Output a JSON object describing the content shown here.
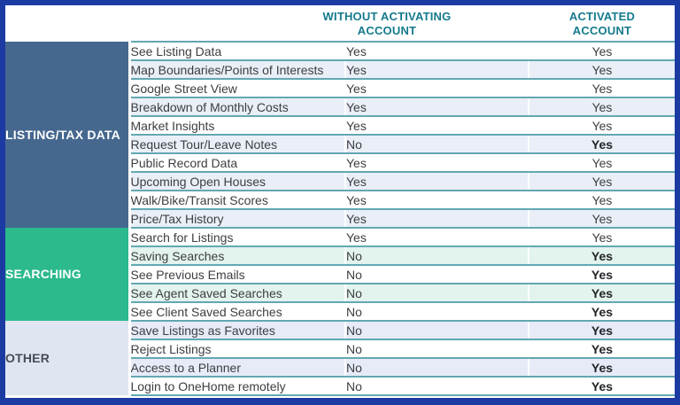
{
  "header": {
    "without_label": "WITHOUT ACTIVATING\nACCOUNT",
    "activated_label": "ACTIVATED\nACCOUNT"
  },
  "colors": {
    "frame_border": "#1c3ba2",
    "header_text": "#157a8d",
    "separator": "#62a8b2",
    "group_listing_bg": "#46688f",
    "group_searching_bg": "#2cb98e",
    "group_other_bg": "#dfe5f1",
    "group_light_text": "#ffffff",
    "group_dark_text": "#474b55",
    "tint_listing": "#e9eef7",
    "tint_searching": "#e3f3ed",
    "tint_other": "#e6ebf7",
    "body_text": "#3d3e42"
  },
  "table": {
    "groups": [
      {
        "id": "listing-tax-data",
        "label": "LISTING/TAX DATA",
        "rows": [
          {
            "feature": "See Listing Data",
            "without": "Yes",
            "activated": "Yes",
            "activated_bold": false
          },
          {
            "feature": "Map Boundaries/Points of Interests",
            "without": "Yes",
            "activated": "Yes",
            "activated_bold": false
          },
          {
            "feature": "Google Street View",
            "without": "Yes",
            "activated": "Yes",
            "activated_bold": false
          },
          {
            "feature": "Breakdown of Monthly Costs",
            "without": "Yes",
            "activated": "Yes",
            "activated_bold": false
          },
          {
            "feature": "Market Insights",
            "without": "Yes",
            "activated": "Yes",
            "activated_bold": false
          },
          {
            "feature": "Request Tour/Leave Notes",
            "without": "No",
            "activated": "Yes",
            "activated_bold": true
          },
          {
            "feature": "Public Record Data",
            "without": "Yes",
            "activated": "Yes",
            "activated_bold": false
          },
          {
            "feature": "Upcoming Open Houses",
            "without": "Yes",
            "activated": "Yes",
            "activated_bold": false
          },
          {
            "feature": "Walk/Bike/Transit Scores",
            "without": "Yes",
            "activated": "Yes",
            "activated_bold": false
          },
          {
            "feature": "Price/Tax History",
            "without": "Yes",
            "activated": "Yes",
            "activated_bold": false
          }
        ]
      },
      {
        "id": "searching",
        "label": "SEARCHING",
        "rows": [
          {
            "feature": "Search for Listings",
            "without": "Yes",
            "activated": "Yes",
            "activated_bold": false
          },
          {
            "feature": "Saving Searches",
            "without": "No",
            "activated": "Yes",
            "activated_bold": true
          },
          {
            "feature": "See Previous Emails",
            "without": "No",
            "activated": "Yes",
            "activated_bold": true
          },
          {
            "feature": "See Agent Saved Searches",
            "without": "No",
            "activated": "Yes",
            "activated_bold": true
          },
          {
            "feature": "See Client Saved Searches",
            "without": "No",
            "activated": "Yes",
            "activated_bold": true
          }
        ]
      },
      {
        "id": "other",
        "label": "OTHER",
        "rows": [
          {
            "feature": "Save Listings as Favorites",
            "without": "No",
            "activated": "Yes",
            "activated_bold": true
          },
          {
            "feature": "Reject Listings",
            "without": "No",
            "activated": "Yes",
            "activated_bold": true
          },
          {
            "feature": "Access to a Planner",
            "without": "No",
            "activated": "Yes",
            "activated_bold": true
          },
          {
            "feature": "Login to OneHome remotely",
            "without": "No",
            "activated": "Yes",
            "activated_bold": true
          }
        ]
      }
    ]
  }
}
